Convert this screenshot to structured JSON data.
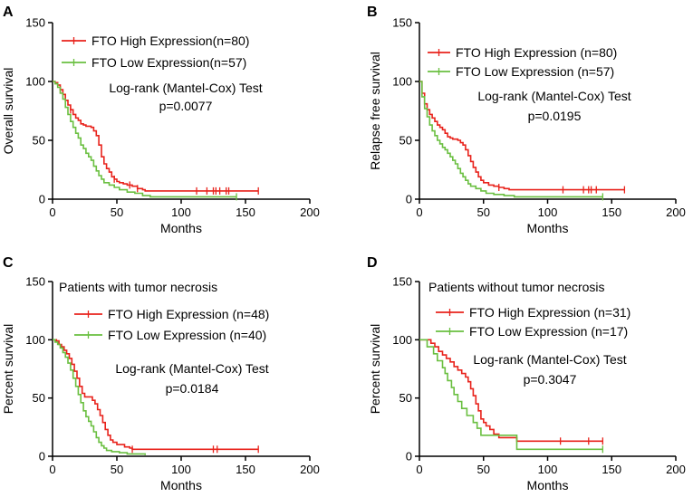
{
  "figure": {
    "width": 765,
    "height": 549
  },
  "chart_data": [
    {
      "panel": "A",
      "type": "line",
      "subtitle": "",
      "ylabel": "Overall survival",
      "xlabel": "Months",
      "xlim": [
        0,
        200
      ],
      "ylim": [
        0,
        150
      ],
      "xticks": [
        "0",
        "50",
        "100",
        "150",
        "200"
      ],
      "yticks": [
        "0",
        "50",
        "100",
        "150"
      ],
      "test_label": "Log-rank (Mantel-Cox) Test",
      "p_value": "p=0.0077",
      "series": [
        {
          "name": "FTO High Expression(n=80)",
          "color": "#e8221b",
          "points": [
            [
              0,
              100
            ],
            [
              2,
              99
            ],
            [
              4,
              97
            ],
            [
              6,
              93
            ],
            [
              8,
              89
            ],
            [
              10,
              84
            ],
            [
              12,
              80
            ],
            [
              14,
              76
            ],
            [
              16,
              72
            ],
            [
              18,
              69
            ],
            [
              20,
              67
            ],
            [
              22,
              64
            ],
            [
              24,
              63
            ],
            [
              26,
              62
            ],
            [
              28,
              62
            ],
            [
              30,
              61
            ],
            [
              32,
              58
            ],
            [
              34,
              54
            ],
            [
              36,
              46
            ],
            [
              38,
              36
            ],
            [
              40,
              30
            ],
            [
              42,
              26
            ],
            [
              44,
              23
            ],
            [
              46,
              19
            ],
            [
              48,
              17
            ],
            [
              50,
              15
            ],
            [
              52,
              14
            ],
            [
              55,
              13
            ],
            [
              58,
              12
            ],
            [
              62,
              11
            ],
            [
              66,
              9
            ],
            [
              70,
              8
            ],
            [
              72,
              7
            ],
            [
              160,
              7
            ]
          ],
          "censor": [
            6,
            14,
            48,
            60,
            66,
            112,
            120,
            125,
            127,
            130,
            135,
            137,
            160
          ]
        },
        {
          "name": "FTO Low Expression(n=57)",
          "color": "#6abf40",
          "points": [
            [
              0,
              100
            ],
            [
              2,
              98
            ],
            [
              4,
              95
            ],
            [
              6,
              90
            ],
            [
              8,
              85
            ],
            [
              10,
              78
            ],
            [
              12,
              72
            ],
            [
              14,
              66
            ],
            [
              16,
              61
            ],
            [
              18,
              56
            ],
            [
              20,
              52
            ],
            [
              22,
              46
            ],
            [
              24,
              43
            ],
            [
              26,
              39
            ],
            [
              28,
              36
            ],
            [
              30,
              33
            ],
            [
              32,
              28
            ],
            [
              34,
              24
            ],
            [
              36,
              20
            ],
            [
              38,
              17
            ],
            [
              40,
              14
            ],
            [
              44,
              12
            ],
            [
              48,
              10
            ],
            [
              52,
              8
            ],
            [
              58,
              6
            ],
            [
              64,
              5
            ],
            [
              70,
              3
            ],
            [
              76,
              2
            ],
            [
              143,
              2
            ]
          ],
          "censor": [
            143
          ]
        }
      ]
    },
    {
      "panel": "B",
      "type": "line",
      "subtitle": "",
      "ylabel": "Relapse free survival",
      "xlabel": "Months",
      "xlim": [
        0,
        200
      ],
      "ylim": [
        0,
        150
      ],
      "xticks": [
        "0",
        "50",
        "100",
        "150",
        "200"
      ],
      "yticks": [
        "0",
        "50",
        "100",
        "150"
      ],
      "test_label": "Log-rank (Mantel-Cox) Test",
      "p_value": "p=0.0195",
      "series": [
        {
          "name": "FTO High Expression (n=80)",
          "color": "#e8221b",
          "points": [
            [
              0,
              100
            ],
            [
              2,
              90
            ],
            [
              4,
              81
            ],
            [
              6,
              76
            ],
            [
              8,
              72
            ],
            [
              10,
              69
            ],
            [
              12,
              66
            ],
            [
              14,
              63
            ],
            [
              16,
              61
            ],
            [
              18,
              59
            ],
            [
              20,
              56
            ],
            [
              22,
              53
            ],
            [
              24,
              52
            ],
            [
              26,
              51
            ],
            [
              28,
              51
            ],
            [
              30,
              50
            ],
            [
              32,
              48
            ],
            [
              34,
              46
            ],
            [
              36,
              42
            ],
            [
              38,
              37
            ],
            [
              40,
              32
            ],
            [
              42,
              27
            ],
            [
              44,
              23
            ],
            [
              46,
              19
            ],
            [
              48,
              16
            ],
            [
              50,
              14
            ],
            [
              54,
              12
            ],
            [
              58,
              11
            ],
            [
              62,
              10
            ],
            [
              66,
              9
            ],
            [
              70,
              8
            ],
            [
              160,
              8
            ]
          ],
          "censor": [
            62,
            112,
            128,
            132,
            134,
            138,
            160
          ]
        },
        {
          "name": "FTO Low Expression (n=57)",
          "color": "#6abf40",
          "points": [
            [
              0,
              100
            ],
            [
              2,
              87
            ],
            [
              4,
              77
            ],
            [
              6,
              70
            ],
            [
              8,
              63
            ],
            [
              10,
              58
            ],
            [
              12,
              54
            ],
            [
              14,
              50
            ],
            [
              16,
              47
            ],
            [
              18,
              44
            ],
            [
              20,
              42
            ],
            [
              22,
              39
            ],
            [
              24,
              36
            ],
            [
              26,
              33
            ],
            [
              28,
              30
            ],
            [
              30,
              26
            ],
            [
              32,
              22
            ],
            [
              34,
              19
            ],
            [
              36,
              16
            ],
            [
              38,
              13
            ],
            [
              40,
              11
            ],
            [
              44,
              9
            ],
            [
              48,
              7
            ],
            [
              52,
              5
            ],
            [
              58,
              4
            ],
            [
              66,
              3
            ],
            [
              74,
              2
            ],
            [
              143,
              2
            ]
          ],
          "censor": [
            143
          ]
        }
      ]
    },
    {
      "panel": "C",
      "type": "line",
      "subtitle": "Patients with tumor necrosis",
      "ylabel": "Percent survival",
      "xlabel": "Months",
      "xlim": [
        0,
        200
      ],
      "ylim": [
        0,
        150
      ],
      "xticks": [
        "0",
        "50",
        "100",
        "150",
        "200"
      ],
      "yticks": [
        "0",
        "50",
        "100",
        "150"
      ],
      "test_label": "Log-rank (Mantel-Cox) Test",
      "p_value": "p=0.0184",
      "series": [
        {
          "name": "FTO High Expression (n=48)",
          "color": "#e8221b",
          "points": [
            [
              0,
              100
            ],
            [
              3,
              99
            ],
            [
              5,
              96
            ],
            [
              7,
              94
            ],
            [
              9,
              91
            ],
            [
              11,
              88
            ],
            [
              13,
              84
            ],
            [
              15,
              79
            ],
            [
              17,
              73
            ],
            [
              19,
              67
            ],
            [
              21,
              60
            ],
            [
              23,
              54
            ],
            [
              25,
              51
            ],
            [
              30,
              51
            ],
            [
              31,
              48
            ],
            [
              33,
              45
            ],
            [
              35,
              40
            ],
            [
              37,
              35
            ],
            [
              39,
              29
            ],
            [
              41,
              23
            ],
            [
              43,
              18
            ],
            [
              45,
              14
            ],
            [
              47,
              12
            ],
            [
              50,
              10
            ],
            [
              56,
              8
            ],
            [
              60,
              7
            ],
            [
              62,
              6
            ],
            [
              160,
              6
            ]
          ],
          "censor": [
            62,
            125,
            128,
            160
          ]
        },
        {
          "name": "FTO Low Expression (n=40)",
          "color": "#6abf40",
          "points": [
            [
              0,
              100
            ],
            [
              2,
              98
            ],
            [
              4,
              96
            ],
            [
              6,
              93
            ],
            [
              8,
              89
            ],
            [
              10,
              85
            ],
            [
              12,
              80
            ],
            [
              14,
              74
            ],
            [
              16,
              67
            ],
            [
              18,
              60
            ],
            [
              20,
              53
            ],
            [
              22,
              46
            ],
            [
              24,
              39
            ],
            [
              26,
              34
            ],
            [
              28,
              30
            ],
            [
              30,
              26
            ],
            [
              32,
              21
            ],
            [
              34,
              16
            ],
            [
              36,
              12
            ],
            [
              38,
              9
            ],
            [
              40,
              7
            ],
            [
              42,
              5
            ],
            [
              46,
              4
            ],
            [
              52,
              3
            ],
            [
              58,
              2
            ],
            [
              72,
              1
            ]
          ],
          "censor": []
        }
      ]
    },
    {
      "panel": "D",
      "type": "line",
      "subtitle": "Patients without tumor necrosis",
      "ylabel": "Percent survival",
      "xlabel": "Months",
      "xlim": [
        0,
        200
      ],
      "ylim": [
        0,
        150
      ],
      "xticks": [
        "0",
        "50",
        "100",
        "150",
        "200"
      ],
      "yticks": [
        "0",
        "50",
        "100",
        "150"
      ],
      "test_label": "Log-rank (Mantel-Cox) Test",
      "p_value": "p=0.3047",
      "series": [
        {
          "name": "FTO High Expression (n=31)",
          "color": "#e8221b",
          "points": [
            [
              0,
              100
            ],
            [
              7,
              100
            ],
            [
              9,
              97
            ],
            [
              12,
              94
            ],
            [
              15,
              90
            ],
            [
              18,
              87
            ],
            [
              21,
              84
            ],
            [
              24,
              81
            ],
            [
              27,
              77
            ],
            [
              30,
              74
            ],
            [
              33,
              71
            ],
            [
              36,
              68
            ],
            [
              38,
              64
            ],
            [
              40,
              58
            ],
            [
              42,
              52
            ],
            [
              44,
              45
            ],
            [
              46,
              39
            ],
            [
              48,
              32
            ],
            [
              50,
              29
            ],
            [
              52,
              26
            ],
            [
              55,
              23
            ],
            [
              58,
              19
            ],
            [
              62,
              16
            ],
            [
              66,
              16
            ],
            [
              76,
              13
            ],
            [
              143,
              13
            ]
          ],
          "censor": [
            110,
            132,
            143
          ]
        },
        {
          "name": "FTO Low Expression (n=17)",
          "color": "#6abf40",
          "points": [
            [
              0,
              100
            ],
            [
              5,
              100
            ],
            [
              6,
              94
            ],
            [
              11,
              88
            ],
            [
              14,
              82
            ],
            [
              18,
              76
            ],
            [
              20,
              71
            ],
            [
              22,
              65
            ],
            [
              25,
              59
            ],
            [
              27,
              53
            ],
            [
              30,
              47
            ],
            [
              33,
              41
            ],
            [
              37,
              35
            ],
            [
              42,
              29
            ],
            [
              45,
              24
            ],
            [
              48,
              18
            ],
            [
              75,
              18
            ],
            [
              76,
              6
            ],
            [
              143,
              6
            ]
          ],
          "censor": [
            143
          ]
        }
      ]
    }
  ]
}
